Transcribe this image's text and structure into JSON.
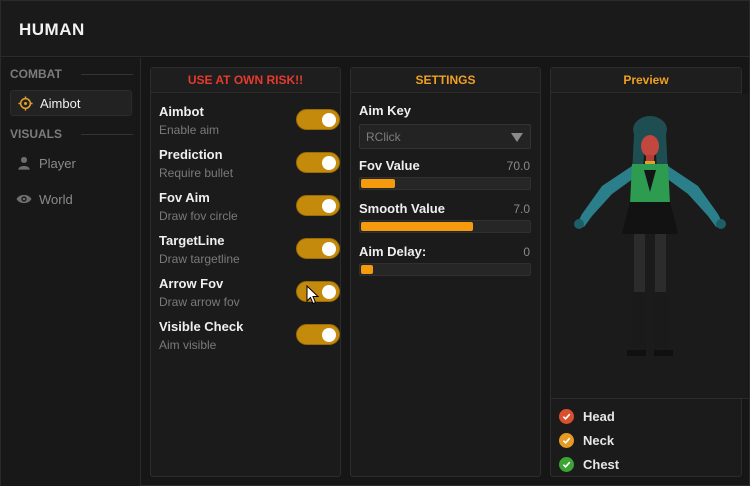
{
  "window": {
    "title": "HUMAN"
  },
  "sidebar": {
    "sections": [
      {
        "label": "COMBAT"
      },
      {
        "label": "VISUALS"
      }
    ],
    "items": [
      {
        "label": "Aimbot",
        "icon": "crosshair-icon",
        "active": true
      },
      {
        "label": "Player",
        "icon": "person-icon",
        "active": false
      },
      {
        "label": "World",
        "icon": "eye-icon",
        "active": false
      }
    ]
  },
  "aimbot_panel": {
    "header": "USE AT OWN RISK!!",
    "header_color": "#e43b2e",
    "options": [
      {
        "label": "Aimbot",
        "description": "Enable aim",
        "enabled": true
      },
      {
        "label": "Prediction",
        "description": "Require bullet",
        "enabled": true
      },
      {
        "label": "Fov Aim",
        "description": "Draw fov circle",
        "enabled": true
      },
      {
        "label": "TargetLine",
        "description": "Draw targetline",
        "enabled": true
      },
      {
        "label": "Arrow Fov",
        "description": "Draw arrow fov",
        "enabled": true
      },
      {
        "label": "Visible Check",
        "description": "Aim visible",
        "enabled": true
      }
    ]
  },
  "settings_panel": {
    "header": "SETTINGS",
    "aim_key": {
      "label": "Aim Key",
      "value": "RClick"
    },
    "sliders": [
      {
        "label": "Fov Value",
        "value": "70.0",
        "fraction": 0.21
      },
      {
        "label": "Smooth Value",
        "value": "7.0",
        "fraction": 0.67
      },
      {
        "label": "Aim Delay:",
        "value": "0",
        "fraction": 0.08
      }
    ]
  },
  "preview_panel": {
    "header": "Preview",
    "legend": [
      {
        "label": "Head",
        "color": "#d9502f"
      },
      {
        "label": "Neck",
        "color": "#e49a23"
      },
      {
        "label": "Chest",
        "color": "#3aa535"
      }
    ]
  },
  "colors": {
    "accent": "#f0a020",
    "toggle_on": "#c48a0c"
  }
}
